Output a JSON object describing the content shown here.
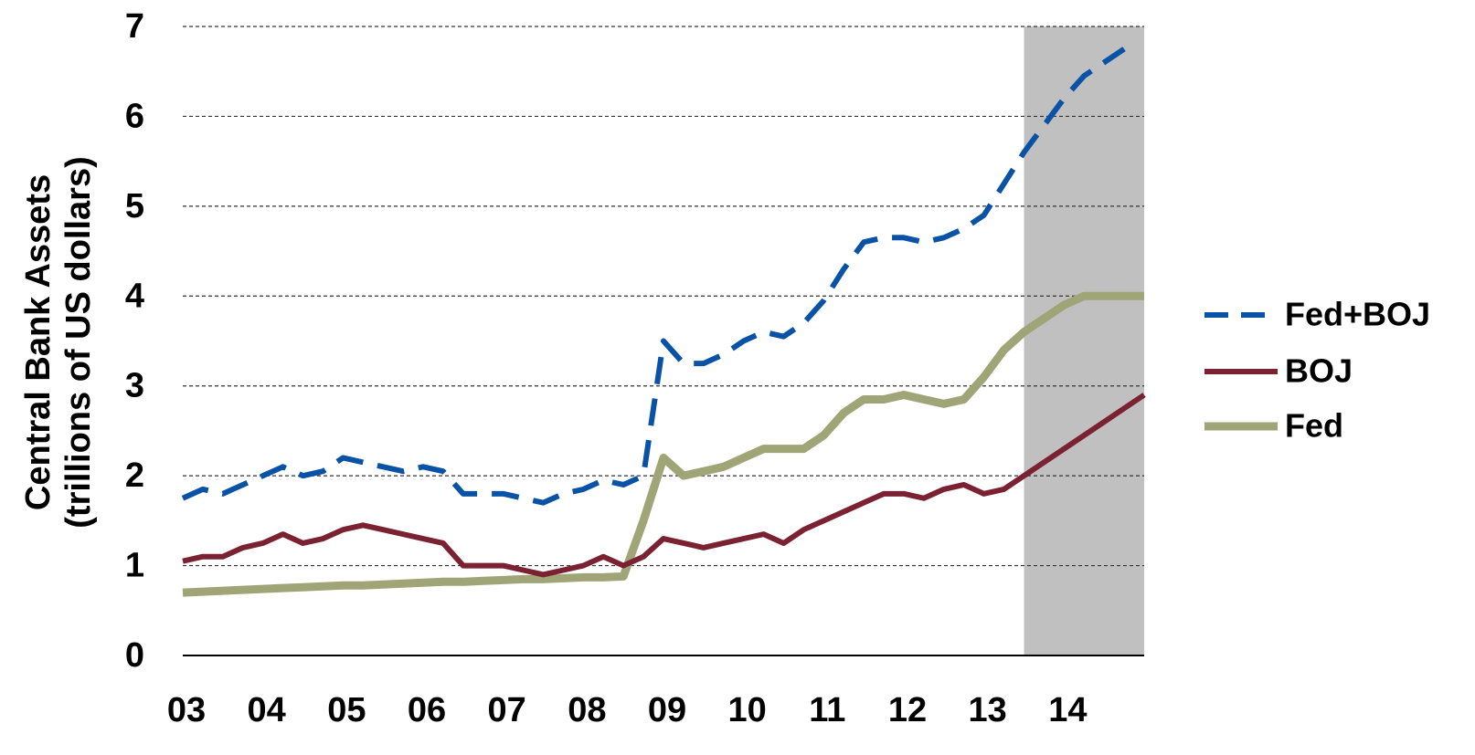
{
  "chart_data": {
    "type": "line",
    "ylabel": [
      "Central Bank Assets",
      "(trillions of US dollars)"
    ],
    "x": [
      2003,
      2003.25,
      2003.5,
      2003.75,
      2004,
      2004.25,
      2004.5,
      2004.75,
      2005,
      2005.25,
      2005.5,
      2005.75,
      2006,
      2006.25,
      2006.5,
      2006.75,
      2007,
      2007.25,
      2007.5,
      2007.75,
      2008,
      2008.25,
      2008.5,
      2008.75,
      2009,
      2009.25,
      2009.5,
      2009.75,
      2010,
      2010.25,
      2010.5,
      2010.75,
      2011,
      2011.25,
      2011.5,
      2011.75,
      2012,
      2012.25,
      2012.5,
      2012.75,
      2013,
      2013.25,
      2013.5,
      2013.75,
      2014,
      2014.25,
      2014.5,
      2014.75,
      2015
    ],
    "series": [
      {
        "name": "Fed+BOJ",
        "color": "#0a52a6",
        "dash": true,
        "values": [
          1.75,
          1.85,
          1.8,
          1.9,
          2.0,
          2.1,
          2.0,
          2.05,
          2.2,
          2.15,
          2.1,
          2.05,
          2.1,
          2.05,
          1.8,
          1.8,
          1.8,
          1.75,
          1.7,
          1.8,
          1.85,
          1.95,
          1.9,
          2.0,
          3.5,
          3.25,
          3.25,
          3.35,
          3.5,
          3.6,
          3.55,
          3.7,
          3.95,
          4.3,
          4.6,
          4.65,
          4.65,
          4.6,
          4.65,
          4.75,
          4.9,
          5.25,
          5.6,
          5.9,
          6.2,
          6.45,
          6.6,
          6.75,
          null
        ]
      },
      {
        "name": "BOJ",
        "color": "#7b2232",
        "values": [
          1.05,
          1.1,
          1.1,
          1.2,
          1.25,
          1.35,
          1.25,
          1.3,
          1.4,
          1.45,
          1.4,
          1.35,
          1.3,
          1.25,
          1.0,
          1.0,
          1.0,
          0.95,
          0.9,
          0.95,
          1.0,
          1.1,
          1.0,
          1.1,
          1.3,
          1.25,
          1.2,
          1.25,
          1.3,
          1.35,
          1.25,
          1.4,
          1.5,
          1.6,
          1.7,
          1.8,
          1.8,
          1.75,
          1.85,
          1.9,
          1.8,
          1.85,
          2.0,
          2.15,
          2.3,
          2.45,
          2.6,
          2.75,
          2.9
        ]
      },
      {
        "name": "Fed",
        "color": "#9fa576",
        "marker": "square",
        "values": [
          0.7,
          0.71,
          0.72,
          0.73,
          0.74,
          0.75,
          0.76,
          0.77,
          0.78,
          0.78,
          0.79,
          0.8,
          0.81,
          0.82,
          0.82,
          0.83,
          0.84,
          0.85,
          0.85,
          0.86,
          0.87,
          0.87,
          0.88,
          1.5,
          2.2,
          2.0,
          2.05,
          2.1,
          2.2,
          2.3,
          2.3,
          2.3,
          2.45,
          2.7,
          2.85,
          2.85,
          2.9,
          2.85,
          2.8,
          2.85,
          3.1,
          3.4,
          3.6,
          3.75,
          3.9,
          4.0,
          4.0,
          4.0,
          4.0
        ]
      }
    ],
    "xlim": [
      2003,
      2015
    ],
    "xticks": [
      {
        "value": 2003,
        "label": "03"
      },
      {
        "value": 2004,
        "label": "04"
      },
      {
        "value": 2005,
        "label": "05"
      },
      {
        "value": 2006,
        "label": "06"
      },
      {
        "value": 2007,
        "label": "07"
      },
      {
        "value": 2008,
        "label": "08"
      },
      {
        "value": 2009,
        "label": "09"
      },
      {
        "value": 2010,
        "label": "10"
      },
      {
        "value": 2011,
        "label": "11"
      },
      {
        "value": 2012,
        "label": "12"
      },
      {
        "value": 2013,
        "label": "13"
      },
      {
        "value": 2014,
        "label": "14"
      }
    ],
    "ylim": [
      0,
      7
    ],
    "yticks": [
      0,
      1,
      2,
      3,
      4,
      5,
      6,
      7
    ],
    "grid": true,
    "shade": {
      "from": 2013.5,
      "to": 2015,
      "color": "#c0c0c0"
    },
    "legend": "right"
  }
}
